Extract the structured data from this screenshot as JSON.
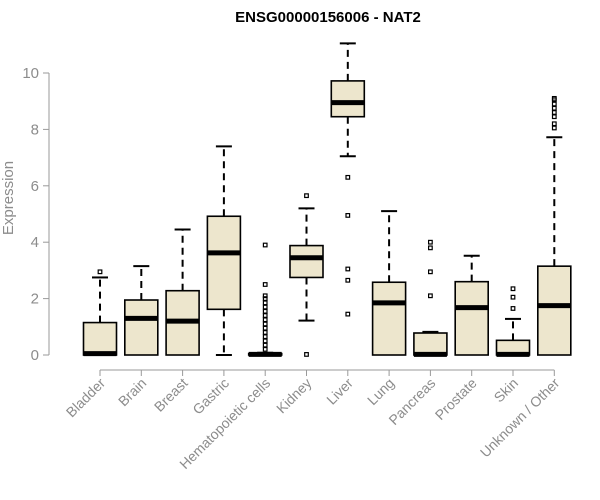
{
  "chart_data": {
    "type": "boxplot",
    "title": "ENSG00000156006 - NAT2",
    "xlabel": "",
    "ylabel": "Expression",
    "ylim": [
      0,
      11.2
    ],
    "yticks": [
      0,
      2,
      4,
      6,
      8,
      10
    ],
    "categories": [
      "Bladder",
      "Brain",
      "Breast",
      "Gastric",
      "Hematopoietic cells",
      "Kidney",
      "Liver",
      "Lung",
      "Pancreas",
      "Prostate",
      "Skin",
      "Unknown / Other"
    ],
    "boxes": [
      {
        "q1": 0,
        "median": 0.05,
        "q3": 1.15,
        "whisker_low": 0,
        "whisker_high": 2.75,
        "outliers": [
          2.95
        ]
      },
      {
        "q1": 0,
        "median": 1.3,
        "q3": 1.95,
        "whisker_low": 0,
        "whisker_high": 3.15,
        "outliers": []
      },
      {
        "q1": 0,
        "median": 1.2,
        "q3": 2.28,
        "whisker_low": 0,
        "whisker_high": 4.45,
        "outliers": []
      },
      {
        "q1": 1.62,
        "median": 3.62,
        "q3": 4.92,
        "whisker_low": 0,
        "whisker_high": 7.4,
        "outliers": []
      },
      {
        "q1": 0,
        "median": 0.02,
        "q3": 0.05,
        "whisker_low": 0,
        "whisker_high": 0.08,
        "outliers": [
          0.2,
          0.35,
          0.5,
          0.65,
          0.8,
          0.95,
          1.1,
          1.25,
          1.4,
          1.55,
          1.7,
          1.85,
          2.0,
          2.1,
          2.5,
          3.9
        ]
      },
      {
        "q1": 2.75,
        "median": 3.45,
        "q3": 3.88,
        "whisker_low": 1.22,
        "whisker_high": 5.2,
        "outliers": [
          0.02,
          5.65
        ]
      },
      {
        "q1": 8.45,
        "median": 8.95,
        "q3": 9.72,
        "whisker_low": 7.05,
        "whisker_high": 11.05,
        "outliers": [
          6.3,
          4.95,
          3.05,
          2.65,
          1.45
        ]
      },
      {
        "q1": 0,
        "median": 1.85,
        "q3": 2.58,
        "whisker_low": 0,
        "whisker_high": 5.1,
        "outliers": []
      },
      {
        "q1": 0,
        "median": 0.02,
        "q3": 0.78,
        "whisker_low": 0,
        "whisker_high": 0.82,
        "outliers": [
          2.1,
          2.95,
          3.8,
          4.0
        ]
      },
      {
        "q1": 0,
        "median": 1.68,
        "q3": 2.6,
        "whisker_low": 0,
        "whisker_high": 3.52,
        "outliers": []
      },
      {
        "q1": 0,
        "median": 0.02,
        "q3": 0.52,
        "whisker_low": 0,
        "whisker_high": 1.28,
        "outliers": [
          1.65,
          2.05,
          2.35
        ]
      },
      {
        "q1": 0,
        "median": 1.75,
        "q3": 3.15,
        "whisker_low": 0,
        "whisker_high": 7.72,
        "outliers": [
          8.05,
          8.2,
          8.45,
          8.6,
          8.75,
          8.9,
          9.05,
          9.1
        ]
      }
    ],
    "box_fill": "#ede6cd",
    "box_stroke": "#000000",
    "axis_color": "#9a9a9a",
    "label_color": "#8c8c8c",
    "grid": false,
    "legend": "none"
  }
}
